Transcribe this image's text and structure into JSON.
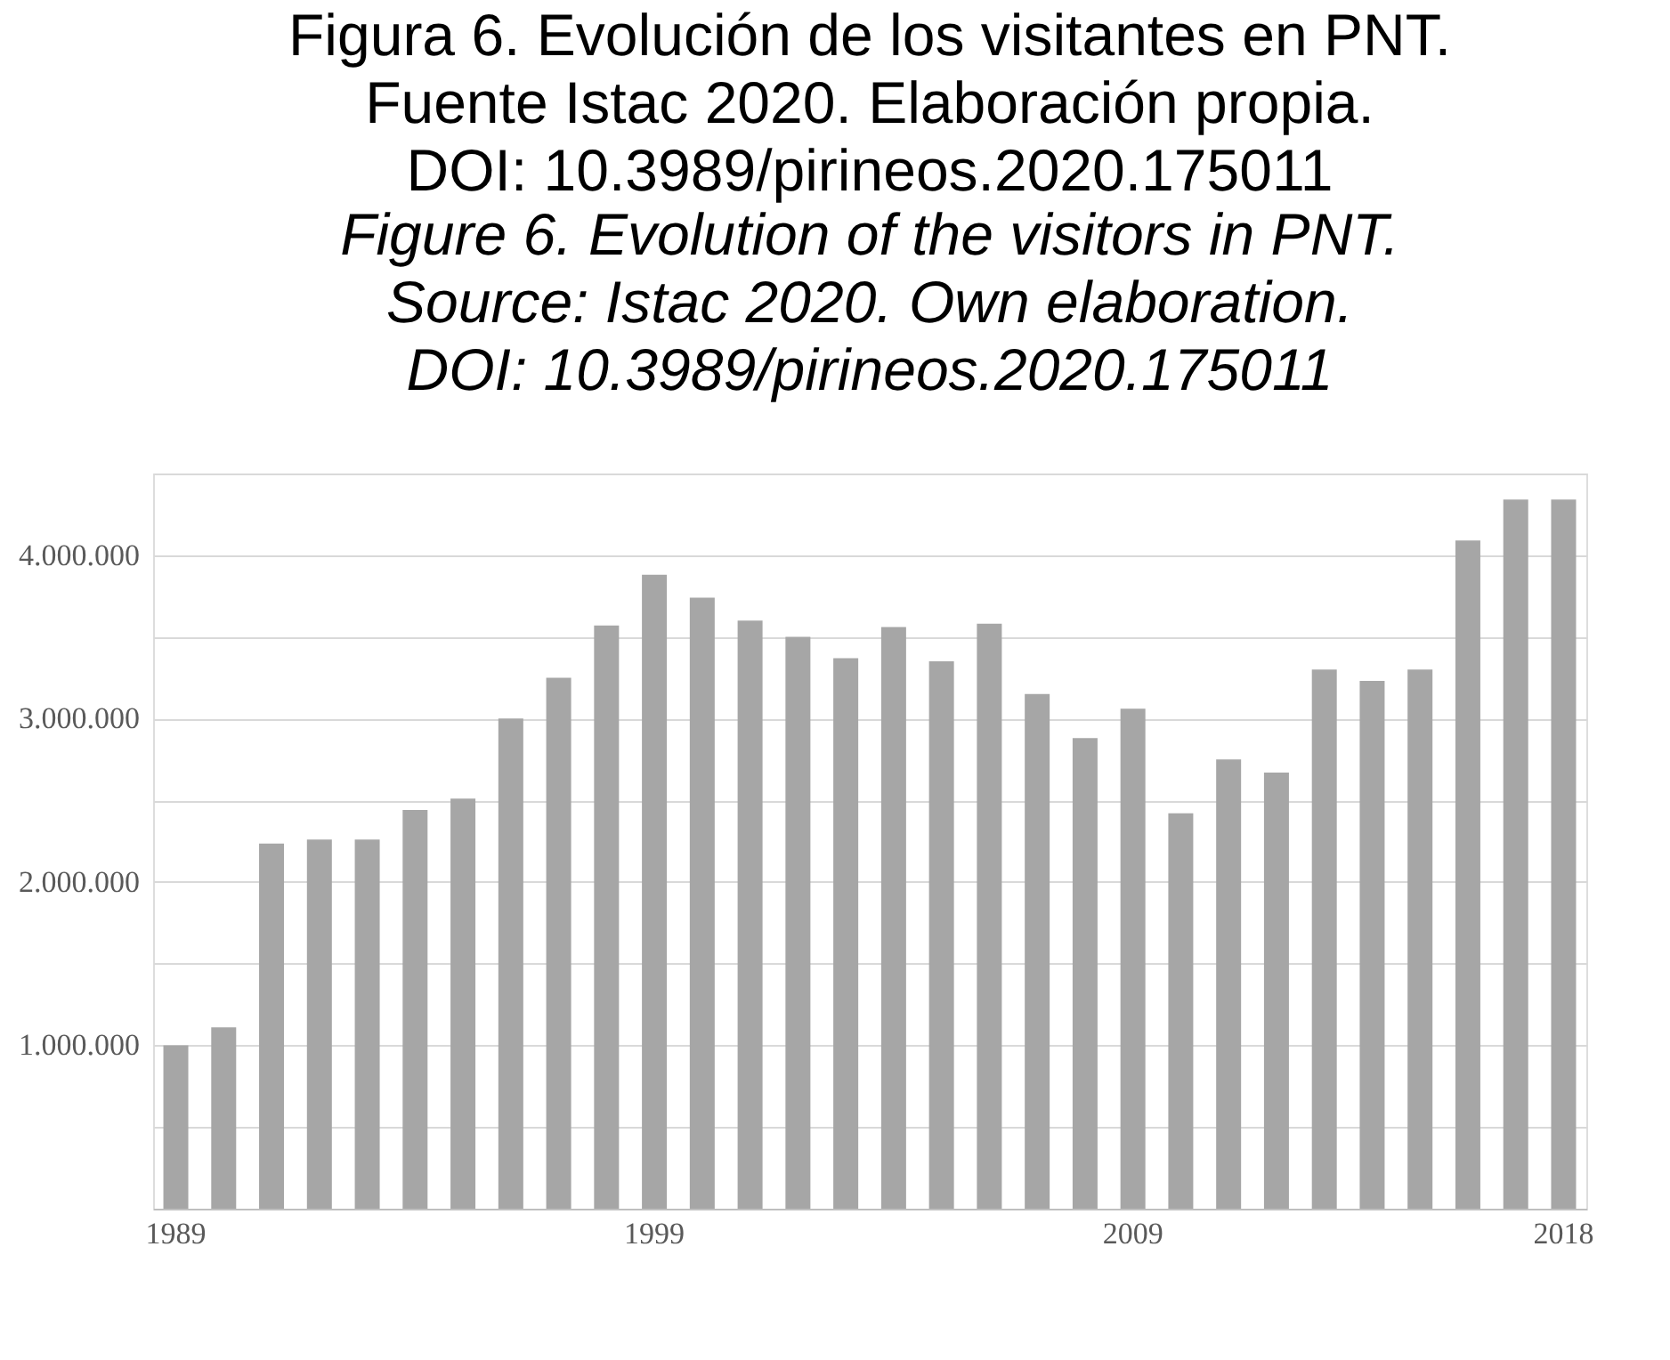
{
  "chart_data": {
    "type": "bar",
    "title": "Figura 6. Evolución de los visitantes en PNT.\nFuente Istac 2020. Elaboración propia.\nDOI: 10.3989/pirineos.2020.175011",
    "subtitle": "Figure 6. Evolution of the visitors in PNT.\nSource: Istac 2020. Own elaboration.\nDOI: 10.3989/pirineos.2020.175011",
    "categories": [
      "1989",
      null,
      null,
      null,
      null,
      null,
      null,
      null,
      null,
      null,
      "1999",
      null,
      null,
      null,
      null,
      null,
      null,
      null,
      null,
      null,
      "2009",
      null,
      null,
      null,
      null,
      null,
      null,
      null,
      null,
      "2018"
    ],
    "values": [
      1000000,
      1110000,
      2235000,
      2260000,
      2260000,
      2440000,
      2510000,
      3000000,
      3250000,
      3570000,
      3880000,
      3740000,
      3600000,
      3500000,
      3370000,
      3560000,
      3350000,
      3580000,
      3150000,
      2880000,
      3060000,
      2420000,
      2750000,
      2670000,
      3300000,
      3230000,
      3300000,
      4090000,
      4340000,
      4340000
    ],
    "color": "#a6a6a6",
    "ylim": [
      0,
      4500000
    ],
    "yticks": [
      {
        "value": 0,
        "label": null
      },
      {
        "value": 500000,
        "label": null
      },
      {
        "value": 1000000,
        "label": "1.000.000"
      },
      {
        "value": 1500000,
        "label": null
      },
      {
        "value": 2000000,
        "label": "2.000.000"
      },
      {
        "value": 2500000,
        "label": null
      },
      {
        "value": 3000000,
        "label": "3.000.000"
      },
      {
        "value": 3500000,
        "label": null
      },
      {
        "value": 4000000,
        "label": "4.000.000"
      },
      {
        "value": 4500000,
        "label": null
      }
    ],
    "grid": "y"
  }
}
